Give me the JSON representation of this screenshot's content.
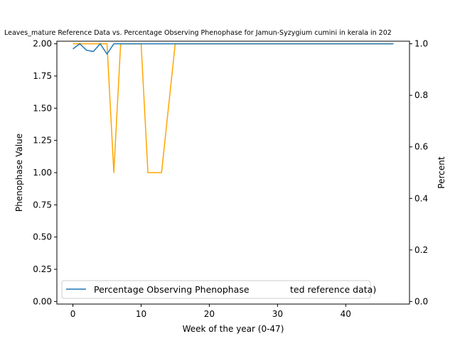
{
  "chart_data": {
    "type": "line",
    "title": "Leaves_mature Reference Data vs. Percentage Observing Phenophase for Jamun-Syzygium cumini in kerala in 202",
    "xlabel": "Week of the year (0-47)",
    "ylabel_left": "Phenophase Value",
    "ylabel_right": "Percent",
    "xlim": [
      -2.35,
      49.35
    ],
    "ylim_left": [
      -0.02,
      2.02
    ],
    "ylim_right": [
      -0.01,
      1.01
    ],
    "xticks": [
      0,
      10,
      20,
      30,
      40
    ],
    "yticks_left": [
      "0.00",
      "0.25",
      "0.50",
      "0.75",
      "1.00",
      "1.25",
      "1.50",
      "1.75",
      "2.00"
    ],
    "yticks_right": [
      "0.0",
      "0.2",
      "0.4",
      "0.6",
      "0.8",
      "1.0"
    ],
    "colors": {
      "reference": "#ffa500",
      "percentage": "#1f77b4"
    },
    "legend": {
      "location": "lower-left",
      "entries": [
        {
          "label": "Percentage Observing Phenophase",
          "color": "#1f77b4"
        },
        {
          "label": "ted reference data)",
          "color": "#ffa500"
        }
      ]
    },
    "series": [
      {
        "axis": "left",
        "color": "#ffa500",
        "x": [
          0,
          1,
          2,
          3,
          4,
          5,
          6,
          7,
          8,
          9,
          10,
          11,
          12,
          13,
          14,
          15,
          16,
          17,
          18,
          19,
          20,
          21,
          22,
          23,
          24,
          25,
          26,
          27,
          28,
          29,
          30,
          31,
          32,
          33,
          34,
          35,
          36,
          37,
          38,
          39,
          40,
          41,
          42,
          43,
          44,
          45,
          46,
          47
        ],
        "y": [
          2,
          2,
          2,
          2,
          2,
          2,
          1,
          2,
          2,
          2,
          2,
          1,
          1,
          1,
          1.5,
          2,
          2,
          2,
          2,
          2,
          2,
          2,
          2,
          2,
          2,
          2,
          2,
          2,
          2,
          2,
          2,
          2,
          2,
          2,
          2,
          2,
          2,
          2,
          2,
          2,
          2,
          2,
          2,
          2,
          2,
          2,
          2,
          2
        ]
      },
      {
        "axis": "right",
        "name": "Percentage Observing Phenophase",
        "color": "#1f77b4",
        "x": [
          0,
          1,
          2,
          3,
          4,
          5,
          6,
          7,
          8,
          9,
          10,
          11,
          12,
          13,
          14,
          15,
          16,
          17,
          18,
          19,
          20,
          21,
          22,
          23,
          24,
          25,
          26,
          27,
          28,
          29,
          30,
          31,
          32,
          33,
          34,
          35,
          36,
          37,
          38,
          39,
          40,
          41,
          42,
          43,
          44,
          45,
          46,
          47
        ],
        "y": [
          0.98,
          1.0,
          0.975,
          0.97,
          1.0,
          0.96,
          1.0,
          1.0,
          1.0,
          1.0,
          1.0,
          1.0,
          1.0,
          1.0,
          1.0,
          1.0,
          1.0,
          1.0,
          1.0,
          1.0,
          1.0,
          1.0,
          1.0,
          1.0,
          1.0,
          1.0,
          1.0,
          1.0,
          1.0,
          1.0,
          1.0,
          1.0,
          1.0,
          1.0,
          1.0,
          1.0,
          1.0,
          1.0,
          1.0,
          1.0,
          1.0,
          1.0,
          1.0,
          1.0,
          1.0,
          1.0,
          1.0,
          1.0
        ]
      }
    ]
  }
}
